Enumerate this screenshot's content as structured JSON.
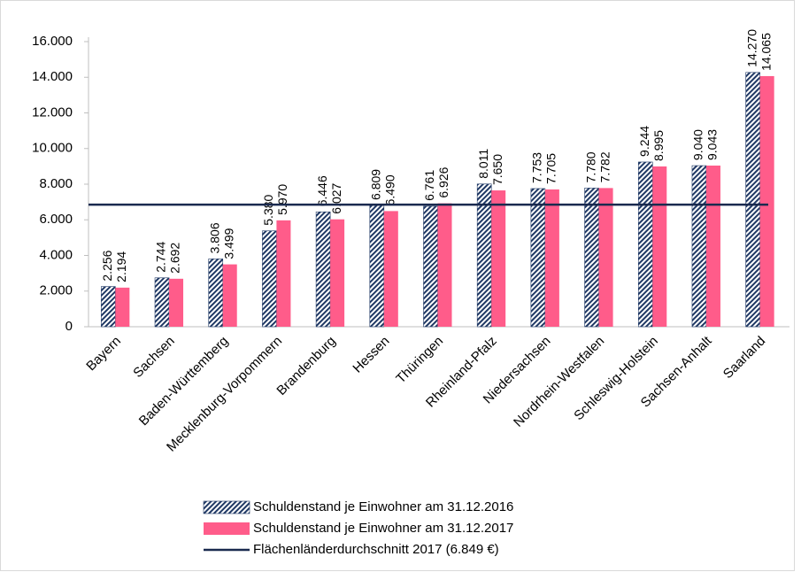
{
  "chart_data": {
    "type": "bar",
    "categories": [
      "Bayern",
      "Sachsen",
      "Baden-Württemberg",
      "Mecklenburg-Vorpommern",
      "Brandenburg",
      "Hessen",
      "Thüringen",
      "Rheinland-Pfalz",
      "Niedersachsen",
      "Nordrhein-Westfalen",
      "Schleswig-Holstein",
      "Sachsen-Anhalt",
      "Saarland"
    ],
    "series": [
      {
        "name": "Schuldenstand je Einwohner am 31.12.2016",
        "color": "#1f3864",
        "hatch": true,
        "values": [
          2256,
          2744,
          3806,
          5380,
          6446,
          6809,
          6761,
          8011,
          7753,
          7780,
          9244,
          9040,
          14270
        ],
        "value_labels": [
          "2.256",
          "2.744",
          "3.806",
          "5.380",
          "6.446",
          "6.809",
          "6.761",
          "8.011",
          "7.753",
          "7.780",
          "9.244",
          "9.040",
          "14.270"
        ]
      },
      {
        "name": "Schuldenstand je Einwohner am 31.12.2017",
        "color": "#ff5c8a",
        "hatch": false,
        "values": [
          2194,
          2692,
          3499,
          5970,
          6027,
          6490,
          6926,
          7650,
          7705,
          7782,
          8995,
          9043,
          14065
        ],
        "value_labels": [
          "2.194",
          "2.692",
          "3.499",
          "5.970",
          "6.027",
          "6.490",
          "6.926",
          "7.650",
          "7.705",
          "7.782",
          "8.995",
          "9.043",
          "14.065"
        ]
      }
    ],
    "reference_line": {
      "name": "Flächenländerdurchschnitt 2017 (6.849 €)",
      "value": 6849,
      "color": "#1a2a4f"
    },
    "ylim": [
      0,
      16000
    ],
    "yticks": [
      0,
      {
        "value": 2000,
        "label": "2.000"
      },
      {
        "value": 4000,
        "label": "4.000"
      },
      {
        "value": 6000,
        "label": "6.000"
      },
      {
        "value": 8000,
        "label": "8.000"
      },
      {
        "value": 10000,
        "label": "10.000"
      },
      {
        "value": 12000,
        "label": "12.000"
      },
      {
        "value": 14000,
        "label": "14.000"
      },
      {
        "value": 16000,
        "label": "16.000"
      }
    ],
    "grid": false
  }
}
